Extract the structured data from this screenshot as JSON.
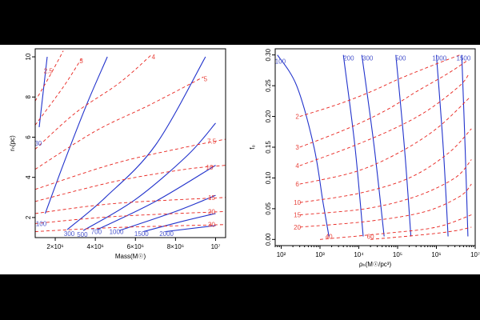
{
  "chart_data": [
    {
      "type": "line",
      "subtype": "contour",
      "title": "",
      "xlabel": "Mass(M☉)",
      "ylabel": "rₕ(pc)",
      "xlim": [
        1000000,
        10500000
      ],
      "ylim": [
        1,
        10.4
      ],
      "x_ticks": [
        2000000,
        4000000,
        6000000,
        8000000,
        10000000
      ],
      "x_tick_labels": [
        "2×10⁶",
        "4×10⁶",
        "6×10⁶",
        "8×10⁶",
        "10⁷"
      ],
      "y_ticks": [
        2,
        4,
        6,
        8,
        10
      ],
      "y_tick_labels": [
        "2",
        "4",
        "6",
        "8",
        "10"
      ],
      "series": [
        {
          "name": "30",
          "color": "#2233cc",
          "style": "solid",
          "x": [
            1200000,
            1600000
          ],
          "y": [
            6.5,
            10
          ]
        },
        {
          "name": "100",
          "color": "#2233cc",
          "style": "solid",
          "x": [
            1500000,
            2500000,
            3600000,
            4600000
          ],
          "y": [
            2.2,
            4.9,
            7.7,
            10
          ]
        },
        {
          "name": "300",
          "color": "#2233cc",
          "style": "solid",
          "x": [
            2600000,
            4500000,
            7000000,
            9500000
          ],
          "y": [
            1.4,
            3.0,
            5.6,
            10
          ]
        },
        {
          "name": "500",
          "color": "#2233cc",
          "style": "solid",
          "x": [
            3400000,
            6000000,
            8600000,
            10000000
          ],
          "y": [
            1.35,
            2.9,
            5.1,
            6.7
          ]
        },
        {
          "name": "700",
          "color": "#2233cc",
          "style": "solid",
          "x": [
            4100000,
            7000000,
            10000000
          ],
          "y": [
            1.4,
            2.8,
            4.6
          ]
        },
        {
          "name": "1000",
          "color": "#2233cc",
          "style": "solid",
          "x": [
            5200000,
            8000000,
            10000000
          ],
          "y": [
            1.35,
            2.3,
            3.1
          ]
        },
        {
          "name": "1500",
          "color": "#2233cc",
          "style": "solid",
          "x": [
            6400000,
            8500000,
            10000000
          ],
          "y": [
            1.3,
            1.85,
            2.2
          ]
        },
        {
          "name": "2000",
          "color": "#2233cc",
          "style": "solid",
          "x": [
            7500000,
            10000000
          ],
          "y": [
            1.3,
            1.6
          ]
        },
        {
          "name": "2.5",
          "color": "#e8231d",
          "style": "dashed",
          "x": [
            1000000,
            1700000,
            2400000
          ],
          "y": [
            7.8,
            9.0,
            10.3
          ]
        },
        {
          "name": "3",
          "color": "#e8231d",
          "style": "dashed",
          "x": [
            1000000,
            2400000,
            3300000
          ],
          "y": [
            6.6,
            8.5,
            9.9
          ]
        },
        {
          "name": "4",
          "color": "#e8231d",
          "style": "dashed",
          "x": [
            1000000,
            3000000,
            5200000,
            6800000
          ],
          "y": [
            5.4,
            7.2,
            8.7,
            10.1
          ]
        },
        {
          "name": "5",
          "color": "#e8231d",
          "style": "dashed",
          "x": [
            1000000,
            4000000,
            6700000,
            9400000
          ],
          "y": [
            4.4,
            6.3,
            7.6,
            9.0
          ]
        },
        {
          "name": "7.5",
          "color": "#e8231d",
          "style": "dashed",
          "x": [
            1000000,
            5000000,
            8500000,
            10500000
          ],
          "y": [
            3.4,
            4.7,
            5.5,
            5.9
          ]
        },
        {
          "name": "10",
          "color": "#e8231d",
          "style": "dashed",
          "x": [
            1000000,
            5000000,
            8500000,
            10500000
          ],
          "y": [
            2.8,
            3.8,
            4.4,
            4.6
          ]
        },
        {
          "name": "15",
          "color": "#e8231d",
          "style": "dashed",
          "x": [
            1000000,
            5000000,
            10500000
          ],
          "y": [
            2.2,
            2.7,
            3.0
          ]
        },
        {
          "name": "20",
          "color": "#e8231d",
          "style": "dashed",
          "x": [
            1000000,
            5000000,
            10500000
          ],
          "y": [
            1.7,
            2.05,
            2.3
          ]
        },
        {
          "name": "30",
          "color": "#e8231d",
          "style": "dashed",
          "x": [
            1000000,
            5000000,
            10500000
          ],
          "y": [
            1.3,
            1.5,
            1.65
          ]
        }
      ],
      "labels": [
        {
          "text": "30",
          "color": "#2233cc",
          "x": 1150000,
          "y": 5.7
        },
        {
          "text": "100",
          "color": "#2233cc",
          "x": 1300000,
          "y": 1.7
        },
        {
          "text": "300",
          "color": "#2233cc",
          "x": 2700000,
          "y": 1.2
        },
        {
          "text": "500",
          "color": "#2233cc",
          "x": 3350000,
          "y": 1.15
        },
        {
          "text": "700",
          "color": "#2233cc",
          "x": 4050000,
          "y": 1.3
        },
        {
          "text": "1000",
          "color": "#2233cc",
          "x": 5050000,
          "y": 1.3
        },
        {
          "text": "1500",
          "color": "#2233cc",
          "x": 6300000,
          "y": 1.2
        },
        {
          "text": "2000",
          "color": "#2233cc",
          "x": 7550000,
          "y": 1.2
        },
        {
          "text": "2.5",
          "color": "#e8231d",
          "x": 1650000,
          "y": 9.3
        },
        {
          "text": "3",
          "color": "#e8231d",
          "x": 3300000,
          "y": 9.8
        },
        {
          "text": "4",
          "color": "#e8231d",
          "x": 6900000,
          "y": 10.0
        },
        {
          "text": "5",
          "color": "#e8231d",
          "x": 9500000,
          "y": 8.9
        },
        {
          "text": "7.5",
          "color": "#e8231d",
          "x": 9800000,
          "y": 5.8
        },
        {
          "text": "10",
          "color": "#e8231d",
          "x": 9700000,
          "y": 4.5
        },
        {
          "text": "15",
          "color": "#e8231d",
          "x": 9800000,
          "y": 3.0
        },
        {
          "text": "20",
          "color": "#e8231d",
          "x": 9800000,
          "y": 2.3
        },
        {
          "text": "30",
          "color": "#e8231d",
          "x": 9800000,
          "y": 1.65
        }
      ]
    },
    {
      "type": "line",
      "subtype": "contour",
      "title": "",
      "xlabel": "ρₕ(M☉/pc³)",
      "ylabel": "f₀",
      "xscale": "log",
      "xlim": [
        70,
        10000000
      ],
      "ylim": [
        -0.01,
        0.31
      ],
      "x_ticks": [
        100,
        1000,
        10000,
        100000,
        1000000,
        10000000
      ],
      "x_tick_labels": [
        "10²",
        "10³",
        "10⁴",
        "10⁵",
        "10⁶",
        "10⁷"
      ],
      "y_ticks": [
        0,
        0.05,
        0.1,
        0.15,
        0.2,
        0.25,
        0.3
      ],
      "y_tick_labels": [
        "0.00",
        "0.05",
        "0.10",
        "0.15",
        "0.20",
        "0.25",
        "0.30"
      ],
      "series": [
        {
          "name": "100",
          "color": "#2233cc",
          "style": "solid",
          "x": [
            80,
            250,
            700,
            1200,
            1700
          ],
          "y": [
            0.3,
            0.25,
            0.15,
            0.06,
            0.005
          ]
        },
        {
          "name": "200",
          "color": "#2233cc",
          "style": "solid",
          "x": [
            4000,
            8000,
            13000
          ],
          "y": [
            0.3,
            0.15,
            0.005
          ]
        },
        {
          "name": "300",
          "color": "#2233cc",
          "style": "solid",
          "x": [
            12000,
            25000,
            45000
          ],
          "y": [
            0.3,
            0.15,
            0.005
          ]
        },
        {
          "name": "500",
          "color": "#2233cc",
          "style": "solid",
          "x": [
            90000,
            150000,
            220000
          ],
          "y": [
            0.3,
            0.15,
            0.005
          ]
        },
        {
          "name": "1000",
          "color": "#2233cc",
          "style": "solid",
          "x": [
            1000000,
            1500000,
            2000000
          ],
          "y": [
            0.3,
            0.15,
            0.005
          ]
        },
        {
          "name": "1500",
          "color": "#2233cc",
          "style": "solid",
          "x": [
            4500000,
            5500000,
            6500000
          ],
          "y": [
            0.3,
            0.15,
            0.005
          ]
        },
        {
          "name": "2",
          "color": "#e8231d",
          "style": "dashed",
          "x": [
            300,
            3000,
            20000,
            100000,
            600000,
            4000000
          ],
          "y": [
            0.2,
            0.22,
            0.24,
            0.26,
            0.28,
            0.3
          ]
        },
        {
          "name": "3",
          "color": "#e8231d",
          "style": "dashed",
          "x": [
            300,
            5000,
            50000,
            300000,
            2000000,
            6000000
          ],
          "y": [
            0.15,
            0.18,
            0.21,
            0.24,
            0.27,
            0.29
          ]
        },
        {
          "name": "4",
          "color": "#e8231d",
          "style": "dashed",
          "x": [
            300,
            6000,
            80000,
            600000,
            4000000,
            7000000
          ],
          "y": [
            0.12,
            0.15,
            0.18,
            0.21,
            0.25,
            0.27
          ]
        },
        {
          "name": "6",
          "color": "#e8231d",
          "style": "dashed",
          "x": [
            300,
            8000,
            100000,
            1000000,
            7000000
          ],
          "y": [
            0.09,
            0.11,
            0.14,
            0.18,
            0.23
          ]
        },
        {
          "name": "10",
          "color": "#e8231d",
          "style": "dashed",
          "x": [
            300,
            10000,
            200000,
            2000000,
            8000000
          ],
          "y": [
            0.06,
            0.075,
            0.1,
            0.14,
            0.18
          ]
        },
        {
          "name": "15",
          "color": "#e8231d",
          "style": "dashed",
          "x": [
            300,
            15000,
            300000,
            3000000,
            8000000
          ],
          "y": [
            0.04,
            0.05,
            0.07,
            0.1,
            0.13
          ]
        },
        {
          "name": "20",
          "color": "#e8231d",
          "style": "dashed",
          "x": [
            300,
            20000,
            500000,
            4000000,
            8000000
          ],
          "y": [
            0.02,
            0.03,
            0.045,
            0.07,
            0.09
          ]
        },
        {
          "name": "40",
          "color": "#e8231d",
          "style": "dashed",
          "x": [
            1000,
            50000,
            1000000,
            8000000
          ],
          "y": [
            0.0,
            0.01,
            0.02,
            0.04
          ]
        },
        {
          "name": "60",
          "color": "#e8231d",
          "style": "dashed",
          "x": [
            20000,
            500000,
            3000000,
            8000000
          ],
          "y": [
            0.0,
            0.008,
            0.014,
            0.02
          ]
        }
      ],
      "labels": [
        {
          "text": "100",
          "color": "#2233cc",
          "x": 95,
          "y": 0.29
        },
        {
          "text": "200",
          "color": "#2233cc",
          "x": 5500,
          "y": 0.295
        },
        {
          "text": "300",
          "color": "#2233cc",
          "x": 17000,
          "y": 0.295
        },
        {
          "text": "500",
          "color": "#2233cc",
          "x": 120000,
          "y": 0.295
        },
        {
          "text": "1000",
          "color": "#2233cc",
          "x": 1200000,
          "y": 0.295
        },
        {
          "text": "1500",
          "color": "#2233cc",
          "x": 5000000,
          "y": 0.295
        },
        {
          "text": "2",
          "color": "#e8231d",
          "x": 260,
          "y": 0.2
        },
        {
          "text": "3",
          "color": "#e8231d",
          "x": 260,
          "y": 0.15
        },
        {
          "text": "4",
          "color": "#e8231d",
          "x": 260,
          "y": 0.12
        },
        {
          "text": "6",
          "color": "#e8231d",
          "x": 260,
          "y": 0.09
        },
        {
          "text": "10",
          "color": "#e8231d",
          "x": 260,
          "y": 0.06
        },
        {
          "text": "15",
          "color": "#e8231d",
          "x": 260,
          "y": 0.04
        },
        {
          "text": "20",
          "color": "#e8231d",
          "x": 260,
          "y": 0.02
        },
        {
          "text": "40",
          "color": "#e8231d",
          "x": 1700,
          "y": 0.005
        },
        {
          "text": "60",
          "color": "#e8231d",
          "x": 20000,
          "y": 0.005
        }
      ]
    }
  ]
}
